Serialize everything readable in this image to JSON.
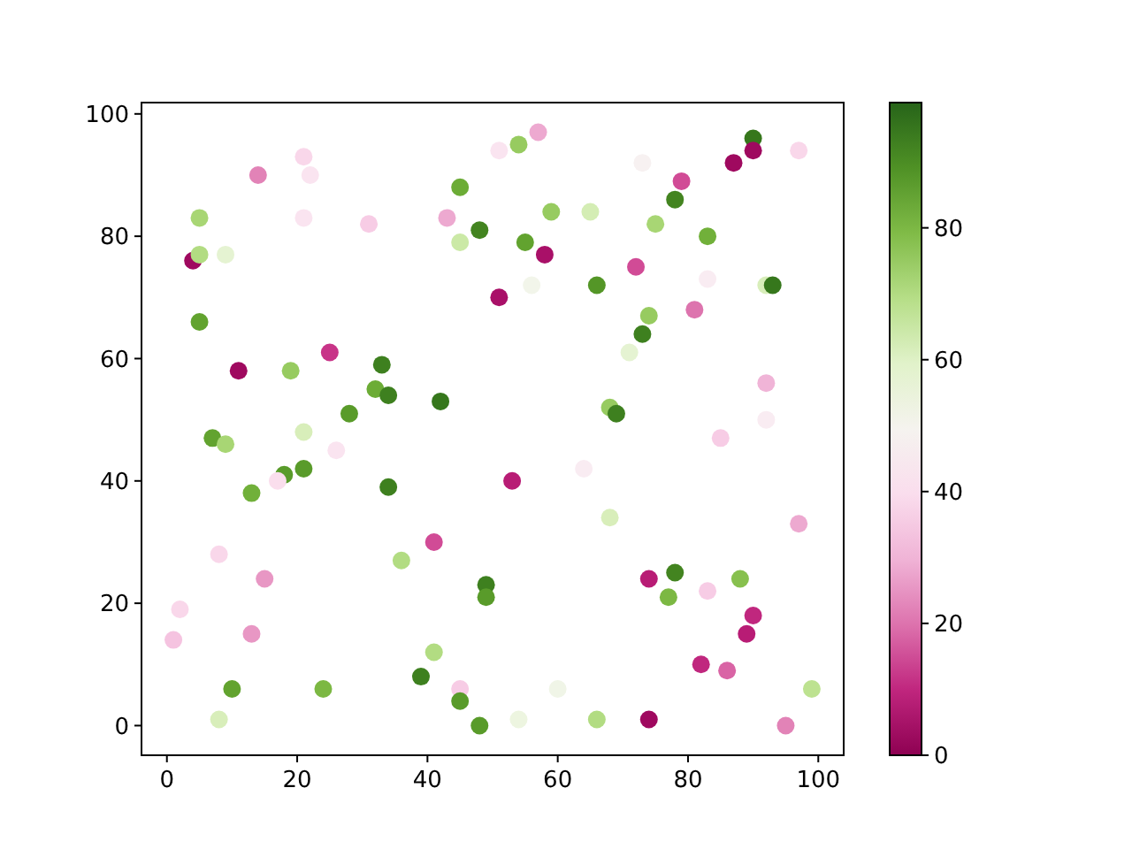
{
  "chart_data": {
    "type": "scatter",
    "x": [
      4,
      5,
      5,
      9,
      14,
      21,
      22,
      21,
      31,
      43,
      45,
      45,
      48,
      51,
      54,
      57,
      73,
      87,
      90,
      90,
      97,
      79,
      78,
      59,
      65,
      75,
      83,
      55,
      58,
      72,
      83,
      51,
      56,
      66,
      92,
      93,
      81,
      74,
      73,
      71,
      92,
      92,
      68,
      69,
      85,
      5,
      25,
      11,
      19,
      33,
      32,
      34,
      42,
      28,
      7,
      9,
      21,
      26,
      18,
      17,
      21,
      13,
      34,
      41,
      36,
      8,
      15,
      2,
      1,
      13,
      49,
      49,
      41,
      39,
      45,
      45,
      48,
      10,
      24,
      8,
      53,
      64,
      68,
      97,
      74,
      78,
      77,
      83,
      88,
      90,
      89,
      82,
      86,
      60,
      99,
      54,
      66,
      74,
      95
    ],
    "values": [
      76,
      83,
      77,
      77,
      90,
      93,
      90,
      83,
      82,
      83,
      88,
      79,
      81,
      94,
      95,
      97,
      92,
      92,
      96,
      94,
      94,
      89,
      86,
      84,
      84,
      82,
      80,
      79,
      77,
      75,
      73,
      70,
      72,
      72,
      72,
      72,
      68,
      67,
      64,
      61,
      56,
      50,
      52,
      51,
      47,
      66,
      61,
      58,
      58,
      59,
      55,
      54,
      53,
      51,
      47,
      46,
      48,
      45,
      41,
      40,
      42,
      38,
      39,
      30,
      27,
      28,
      24,
      19,
      14,
      15,
      23,
      21,
      12,
      8,
      6,
      4,
      0,
      6,
      6,
      1,
      40,
      42,
      34,
      33,
      24,
      25,
      21,
      22,
      24,
      18,
      15,
      10,
      9,
      6,
      6,
      1,
      1,
      1,
      0
    ],
    "cvalues": [
      3,
      72,
      70,
      58,
      22,
      38,
      42,
      42,
      35,
      28,
      83,
      65,
      92,
      42,
      75,
      28,
      48,
      3,
      95,
      3,
      38,
      15,
      92,
      75,
      63,
      72,
      82,
      85,
      5,
      15,
      45,
      5,
      52,
      88,
      62,
      95,
      20,
      75,
      93,
      58,
      30,
      45,
      75,
      93,
      35,
      85,
      12,
      3,
      75,
      93,
      83,
      93,
      95,
      87,
      85,
      72,
      62,
      42,
      87,
      40,
      87,
      82,
      93,
      15,
      70,
      38,
      25,
      38,
      33,
      25,
      93,
      87,
      70,
      93,
      35,
      87,
      87,
      85,
      80,
      62,
      8,
      45,
      62,
      28,
      8,
      92,
      80,
      35,
      78,
      10,
      8,
      10,
      18,
      53,
      68,
      55,
      70,
      3,
      22
    ],
    "xlim": [
      -3.9,
      103.9
    ],
    "ylim": [
      -4.85,
      101.85
    ],
    "xticks": [
      0,
      20,
      40,
      60,
      80,
      100
    ],
    "yticks": [
      0,
      20,
      40,
      60,
      80,
      100
    ],
    "clim": [
      0,
      99
    ],
    "cticks": [
      0,
      20,
      40,
      60,
      80
    ],
    "marker": "circle",
    "grid": false
  }
}
